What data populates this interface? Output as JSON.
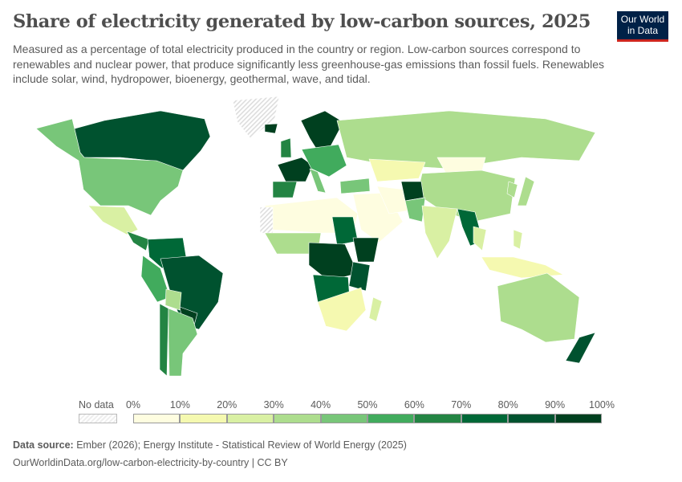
{
  "header": {
    "title": "Share of electricity generated by low-carbon sources, 2025",
    "subtitle": "Measured as a percentage of total electricity produced in the country or region. Low-carbon sources correspond to renewables and nuclear power, that produce significantly less greenhouse-gas emissions than fossil fuels. Renewables include solar, wind, hydropower, bioenergy, geothermal, wave, and tidal.",
    "logo": "Our World in Data"
  },
  "legend": {
    "no_data_label": "No data",
    "ticks": [
      "0%",
      "10%",
      "20%",
      "30%",
      "40%",
      "50%",
      "60%",
      "70%",
      "80%",
      "90%",
      "100%"
    ],
    "colors": [
      "#fefde0",
      "#f5f9b0",
      "#d9f0a3",
      "#addd8e",
      "#78c679",
      "#41ab5d",
      "#238443",
      "#006837",
      "#00522f",
      "#00401f"
    ],
    "no_data_color": "#eeeeee"
  },
  "map_data": {
    "metric": "Share of electricity from low-carbon sources (%)",
    "year": 2025,
    "countries": [
      {
        "name": "Canada",
        "value": 82
      },
      {
        "name": "United States",
        "value": 42
      },
      {
        "name": "Greenland",
        "value": null
      },
      {
        "name": "Mexico",
        "value": 24
      },
      {
        "name": "Central America",
        "value": 62
      },
      {
        "name": "Colombia & Venezuela",
        "value": 72
      },
      {
        "name": "Peru & Ecuador",
        "value": 55
      },
      {
        "name": "Brazil",
        "value": 88
      },
      {
        "name": "Bolivia",
        "value": 35
      },
      {
        "name": "Paraguay & Uruguay",
        "value": 99
      },
      {
        "name": "Chile",
        "value": 65
      },
      {
        "name": "Argentina",
        "value": 45
      },
      {
        "name": "Iceland",
        "value": 100
      },
      {
        "name": "Scandinavia",
        "value": 95
      },
      {
        "name": "United Kingdom",
        "value": 62
      },
      {
        "name": "France",
        "value": 92
      },
      {
        "name": "Spain & Portugal",
        "value": 68
      },
      {
        "name": "Central & Eastern Europe",
        "value": 52
      },
      {
        "name": "Italy",
        "value": 48
      },
      {
        "name": "Russia",
        "value": 36
      },
      {
        "name": "Kazakhstan",
        "value": 13
      },
      {
        "name": "Mongolia",
        "value": 6
      },
      {
        "name": "China",
        "value": 38
      },
      {
        "name": "Turkey",
        "value": 42
      },
      {
        "name": "Middle East",
        "value": 3
      },
      {
        "name": "Iran",
        "value": 8
      },
      {
        "name": "Central Asia",
        "value": 92
      },
      {
        "name": "Pakistan",
        "value": 48
      },
      {
        "name": "India",
        "value": 25
      },
      {
        "name": "Myanmar & Laos",
        "value": 75
      },
      {
        "name": "Thailand & Vietnam",
        "value": 28
      },
      {
        "name": "Japan",
        "value": 32
      },
      {
        "name": "South Korea",
        "value": 38
      },
      {
        "name": "Indonesia",
        "value": 18
      },
      {
        "name": "Philippines",
        "value": 22
      },
      {
        "name": "Australia",
        "value": 38
      },
      {
        "name": "New Zealand",
        "value": 85
      },
      {
        "name": "North Africa",
        "value": 5
      },
      {
        "name": "Western Sahara",
        "value": null
      },
      {
        "name": "West Africa",
        "value": 32
      },
      {
        "name": "Sudan",
        "value": 72
      },
      {
        "name": "Ethiopia",
        "value": 100
      },
      {
        "name": "Central Africa",
        "value": 95
      },
      {
        "name": "East Africa",
        "value": 82
      },
      {
        "name": "Angola & Zambia",
        "value": 78
      },
      {
        "name": "Southern Africa",
        "value": 14
      },
      {
        "name": "Madagascar",
        "value": 25
      }
    ]
  },
  "footer": {
    "source_label": "Data source:",
    "source": "Ember (2026); Energy Institute - Statistical Review of World Energy (2025)",
    "url": "OurWorldinData.org/low-carbon-electricity-by-country | CC BY"
  }
}
